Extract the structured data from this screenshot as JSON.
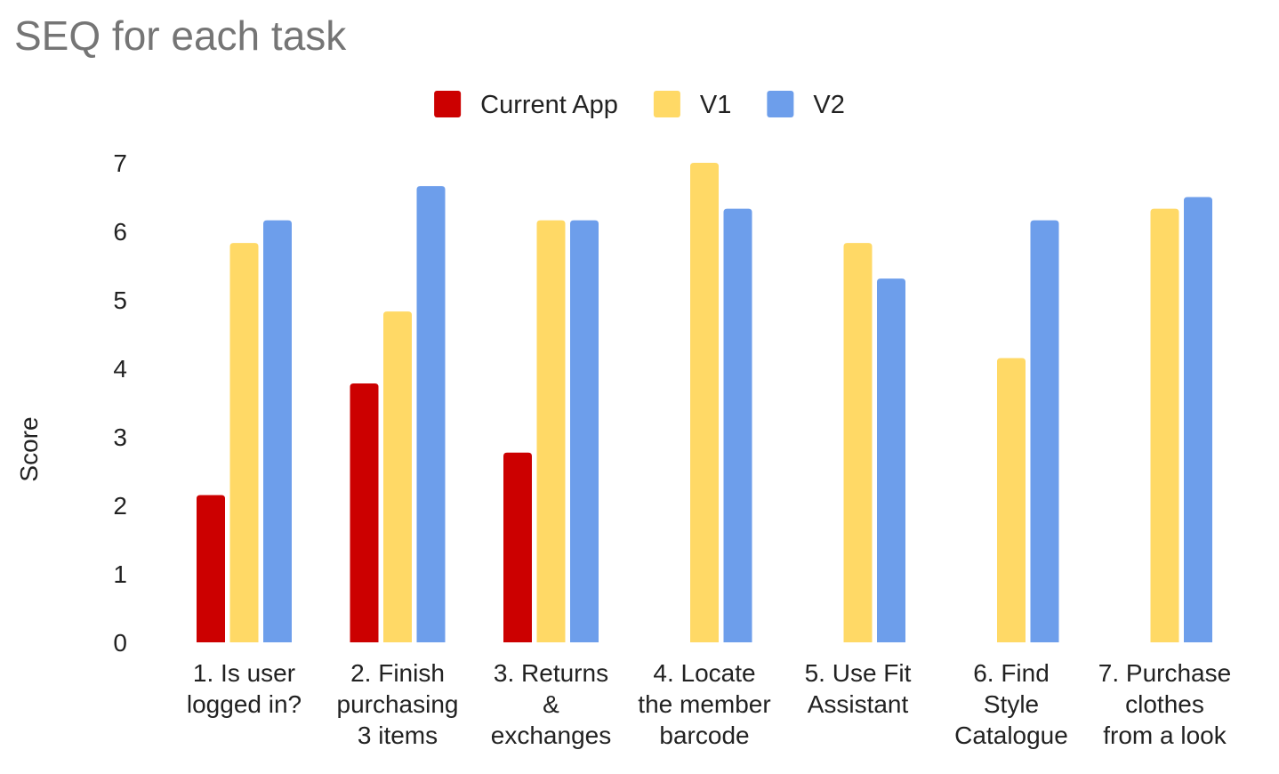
{
  "chart_data": {
    "type": "bar",
    "title": "SEQ for each task",
    "xlabel": "",
    "ylabel": "Score",
    "ylim": [
      0,
      7
    ],
    "yticks": [
      "0",
      "1",
      "2",
      "3",
      "4",
      "5",
      "6",
      "7"
    ],
    "grid": false,
    "legend_position": "top",
    "categories": [
      [
        "1. Is user",
        "logged in?"
      ],
      [
        "2. Finish",
        "purchasing",
        "3 items"
      ],
      [
        "3. Returns",
        "&",
        "exchanges"
      ],
      [
        "4. Locate",
        "the member",
        "barcode"
      ],
      [
        "5. Use Fit",
        "Assistant"
      ],
      [
        "6. Find",
        "Style",
        "Catalogue"
      ],
      [
        "7. Purchase",
        "clothes",
        "from a look"
      ]
    ],
    "series": [
      {
        "name": "Current App",
        "color": "#cc0000",
        "values": [
          2.15,
          3.78,
          2.77,
          null,
          null,
          null,
          null
        ]
      },
      {
        "name": "V1",
        "color": "#ffd966",
        "values": [
          5.83,
          4.83,
          6.16,
          7.0,
          5.83,
          4.15,
          6.33
        ]
      },
      {
        "name": "V2",
        "color": "#6d9eeb",
        "values": [
          6.16,
          6.66,
          6.16,
          6.33,
          5.31,
          6.16,
          6.5
        ]
      }
    ]
  }
}
